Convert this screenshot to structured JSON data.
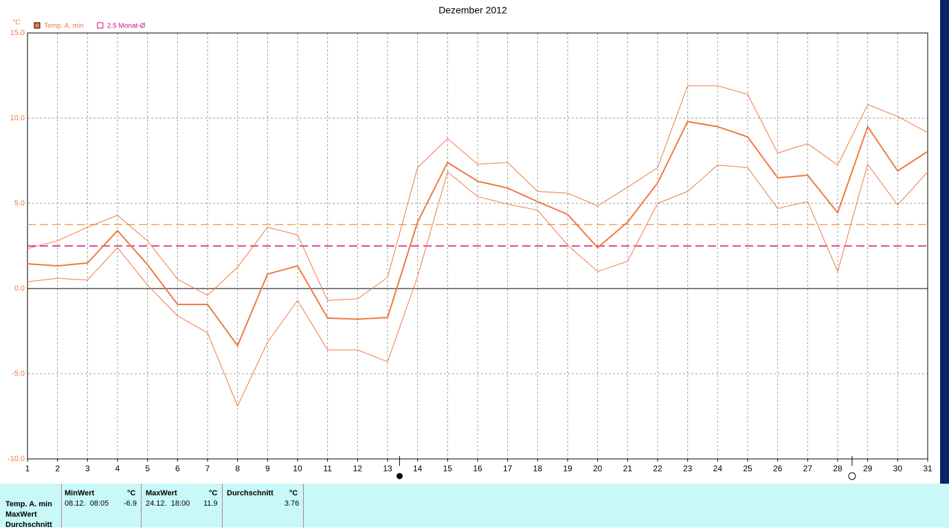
{
  "chart_data": {
    "type": "line",
    "title": "Dezember 2012",
    "y_unit": "°C",
    "x": [
      1,
      2,
      3,
      4,
      5,
      6,
      7,
      8,
      9,
      10,
      11,
      12,
      13,
      14,
      15,
      16,
      17,
      18,
      19,
      20,
      21,
      22,
      23,
      24,
      25,
      26,
      27,
      28,
      29,
      30,
      31
    ],
    "xlim": [
      1,
      31
    ],
    "xticks": [
      1,
      2,
      3,
      4,
      5,
      6,
      7,
      8,
      9,
      10,
      11,
      12,
      13,
      14,
      15,
      16,
      17,
      18,
      19,
      20,
      21,
      22,
      23,
      24,
      25,
      26,
      27,
      28,
      29,
      30,
      31
    ],
    "ylim": [
      -10,
      15
    ],
    "yticks": [
      {
        "value": -10,
        "label": "-10.0"
      },
      {
        "value": -5,
        "label": "-5.0"
      },
      {
        "value": 0,
        "label": "0.0"
      },
      {
        "value": 5,
        "label": "5.0"
      },
      {
        "value": 10,
        "label": "10.0"
      },
      {
        "value": 15,
        "label": "15.0"
      }
    ],
    "grid": true,
    "series": [
      {
        "name": "Temp. A. min",
        "color": "#f07840",
        "width": 2,
        "values": [
          1.45,
          1.33,
          1.5,
          3.4,
          1.4,
          -0.93,
          -0.93,
          -3.35,
          0.85,
          1.33,
          -1.73,
          -1.8,
          -1.7,
          3.9,
          7.4,
          6.3,
          5.9,
          5.1,
          4.35,
          2.4,
          3.9,
          6.2,
          9.8,
          9.5,
          8.9,
          6.5,
          6.65,
          4.45,
          9.5,
          6.9,
          8.05
        ]
      },
      {
        "color": "#f07840",
        "width": 1,
        "values": [
          2.35,
          2.8,
          3.6,
          4.3,
          2.8,
          0.55,
          -0.4,
          1.25,
          3.6,
          3.15,
          -0.7,
          -0.6,
          0.65,
          7.1,
          8.8,
          7.3,
          7.4,
          5.7,
          5.6,
          4.85,
          5.95,
          7.1,
          11.9,
          11.9,
          11.4,
          7.95,
          8.5,
          7.25,
          10.8,
          10.1,
          9.15
        ]
      },
      {
        "color": "#f07840",
        "width": 1,
        "values": [
          0.4,
          0.6,
          0.5,
          2.4,
          0.2,
          -1.6,
          -2.6,
          -6.9,
          -3.15,
          -0.7,
          -3.6,
          -3.6,
          -4.3,
          0.7,
          6.85,
          5.4,
          4.95,
          4.6,
          2.55,
          1.0,
          1.6,
          5.0,
          5.7,
          7.25,
          7.1,
          4.7,
          5.1,
          1.0,
          7.3,
          4.9,
          6.85
        ]
      }
    ],
    "ref_lines": [
      {
        "value": 3.76,
        "color": "#f0a060"
      },
      {
        "name": "2.5 Monat-Ø",
        "value": 2.5,
        "color": "#c8147c"
      }
    ],
    "moon_markers": [
      {
        "x": 13.4,
        "filled": true
      },
      {
        "x": 28.48,
        "filled": false
      }
    ]
  },
  "table": {
    "row_labels": [
      "Temp. A. min",
      "MaxWert",
      "Durchschnitt"
    ],
    "columns": [
      {
        "header": "MinWert",
        "unit": "°C",
        "time": "08.12.  08:05",
        "value": "-6.9"
      },
      {
        "header": "MaxWert",
        "unit": "°C",
        "time": "24.12.  18:00",
        "value": "11.9"
      },
      {
        "header": "Durchschnitt",
        "unit": "°C",
        "value": "3.76"
      }
    ]
  }
}
